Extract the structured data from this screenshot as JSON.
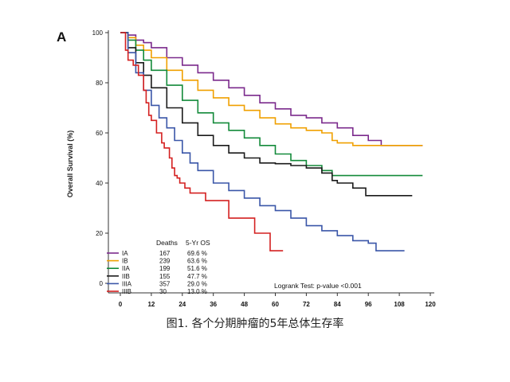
{
  "caption": "图1. 各个分期肿瘤的5年总体生存率",
  "chart_data": {
    "type": "line",
    "panel_label": "A",
    "title": "",
    "xlabel": "",
    "ylabel": "Overall Survival (%)",
    "xlim": [
      0,
      120
    ],
    "ylim": [
      0,
      100
    ],
    "xticks": [
      0,
      12,
      24,
      36,
      48,
      60,
      72,
      84,
      96,
      108,
      120
    ],
    "yticks": [
      0,
      20,
      40,
      60,
      80,
      100
    ],
    "grid": false,
    "legend_placement": "bottom-left",
    "table_headers": {
      "deaths": "Deaths",
      "os": "5-Yr OS"
    },
    "annotation": "Logrank Test: p-value <0.001",
    "series": [
      {
        "name": "IA",
        "deaths": "167",
        "os": "69.6 %",
        "color": "#7b2a8c",
        "points": [
          [
            0,
            100
          ],
          [
            3,
            99
          ],
          [
            6,
            97
          ],
          [
            9,
            96
          ],
          [
            12,
            94
          ],
          [
            18,
            90
          ],
          [
            24,
            87
          ],
          [
            30,
            84
          ],
          [
            36,
            81
          ],
          [
            42,
            78
          ],
          [
            48,
            75
          ],
          [
            54,
            72
          ],
          [
            60,
            69.6
          ],
          [
            66,
            67
          ],
          [
            72,
            66
          ],
          [
            78,
            64
          ],
          [
            84,
            62
          ],
          [
            90,
            59
          ],
          [
            96,
            57
          ],
          [
            100,
            57
          ],
          [
            101,
            55
          ],
          [
            117,
            55
          ]
        ]
      },
      {
        "name": "IB",
        "deaths": "239",
        "os": "63.6 %",
        "color": "#f0a000",
        "points": [
          [
            0,
            100
          ],
          [
            3,
            98
          ],
          [
            6,
            95
          ],
          [
            9,
            93
          ],
          [
            12,
            90
          ],
          [
            18,
            85
          ],
          [
            24,
            81
          ],
          [
            30,
            77
          ],
          [
            36,
            74
          ],
          [
            42,
            71
          ],
          [
            48,
            69
          ],
          [
            54,
            66
          ],
          [
            60,
            63.6
          ],
          [
            66,
            62
          ],
          [
            72,
            61
          ],
          [
            78,
            60
          ],
          [
            82,
            57
          ],
          [
            84,
            56
          ],
          [
            90,
            55
          ],
          [
            96,
            55
          ],
          [
            100,
            55
          ],
          [
            117,
            55
          ]
        ]
      },
      {
        "name": "IIA",
        "deaths": "199",
        "os": "51.6 %",
        "color": "#138a3a",
        "points": [
          [
            0,
            100
          ],
          [
            3,
            97
          ],
          [
            6,
            93
          ],
          [
            9,
            89
          ],
          [
            12,
            85
          ],
          [
            18,
            79
          ],
          [
            24,
            73
          ],
          [
            30,
            68
          ],
          [
            36,
            64
          ],
          [
            42,
            61
          ],
          [
            48,
            58
          ],
          [
            54,
            55
          ],
          [
            60,
            51.6
          ],
          [
            66,
            49
          ],
          [
            72,
            47
          ],
          [
            78,
            45
          ],
          [
            82,
            43
          ],
          [
            84,
            43
          ],
          [
            96,
            43
          ],
          [
            117,
            43
          ]
        ]
      },
      {
        "name": "IIB",
        "deaths": "155",
        "os": "47.7 %",
        "color": "#1a1a1a",
        "points": [
          [
            0,
            100
          ],
          [
            3,
            94
          ],
          [
            6,
            88
          ],
          [
            9,
            83
          ],
          [
            12,
            78
          ],
          [
            18,
            70
          ],
          [
            24,
            64
          ],
          [
            30,
            59
          ],
          [
            36,
            55
          ],
          [
            42,
            52
          ],
          [
            48,
            50
          ],
          [
            54,
            48
          ],
          [
            60,
            47.7
          ],
          [
            66,
            47
          ],
          [
            72,
            46
          ],
          [
            78,
            44
          ],
          [
            82,
            41
          ],
          [
            84,
            40
          ],
          [
            90,
            38
          ],
          [
            94,
            38
          ],
          [
            95,
            35
          ],
          [
            113,
            35
          ]
        ]
      },
      {
        "name": "IIIA",
        "deaths": "357",
        "os": "29.0 %",
        "color": "#3a56a8",
        "points": [
          [
            0,
            100
          ],
          [
            3,
            92
          ],
          [
            6,
            84
          ],
          [
            9,
            77
          ],
          [
            12,
            71
          ],
          [
            15,
            66
          ],
          [
            18,
            62
          ],
          [
            21,
            57
          ],
          [
            24,
            52
          ],
          [
            27,
            48
          ],
          [
            30,
            45
          ],
          [
            36,
            40
          ],
          [
            42,
            37
          ],
          [
            48,
            34
          ],
          [
            54,
            31
          ],
          [
            60,
            29
          ],
          [
            66,
            26
          ],
          [
            72,
            23
          ],
          [
            78,
            21
          ],
          [
            84,
            19
          ],
          [
            90,
            17
          ],
          [
            96,
            16
          ],
          [
            99,
            13
          ],
          [
            110,
            13
          ]
        ]
      },
      {
        "name": "IIIB",
        "deaths": "30",
        "os": "13.0 %",
        "color": "#d42020",
        "points": [
          [
            0,
            100
          ],
          [
            2,
            93
          ],
          [
            3,
            89
          ],
          [
            5,
            87
          ],
          [
            7,
            83
          ],
          [
            9,
            77
          ],
          [
            10,
            72
          ],
          [
            11,
            67
          ],
          [
            12,
            65
          ],
          [
            14,
            60
          ],
          [
            16,
            56
          ],
          [
            17,
            54
          ],
          [
            19,
            50
          ],
          [
            20,
            46
          ],
          [
            21,
            43
          ],
          [
            22,
            42
          ],
          [
            23,
            40
          ],
          [
            25,
            38
          ],
          [
            27,
            36
          ],
          [
            30,
            36
          ],
          [
            33,
            33
          ],
          [
            40,
            33
          ],
          [
            42,
            26
          ],
          [
            51,
            26
          ],
          [
            52,
            20
          ],
          [
            57,
            20
          ],
          [
            58,
            13
          ],
          [
            63,
            13
          ]
        ]
      }
    ]
  }
}
